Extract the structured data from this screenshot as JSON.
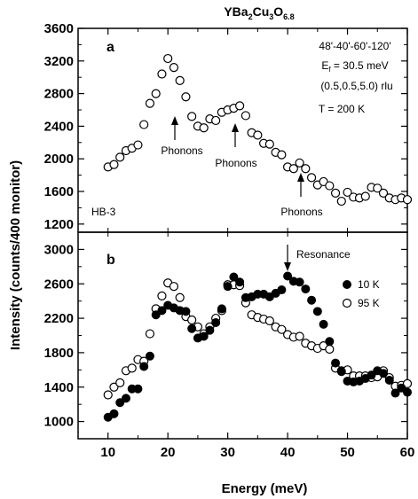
{
  "title_parts": {
    "t1": "YBa",
    "s1": "2",
    "t2": "Cu",
    "s2": "3",
    "t3": "O",
    "s3": "6.8"
  },
  "ylabel": "Intensity (counts/400 monitor)",
  "xlabel": "Energy (meV)",
  "x_ticks": [
    "10",
    "20",
    "30",
    "40",
    "50",
    "60"
  ],
  "panel_a": {
    "letter": "a",
    "y_ticks": [
      "1200",
      "1600",
      "2000",
      "2400",
      "2800",
      "3200",
      "3600"
    ],
    "info": {
      "line1": "48'-40'-60'-120'",
      "ef_prefix": "E",
      "ef_sub": "f",
      "ef_value": " = 30.5 meV",
      "line3": "(0.5,0.5,5.0) rlu",
      "line4": "T = 200 K"
    },
    "instrument": "HB-3",
    "phonon_labels": [
      "Phonons",
      "Phonons",
      "Phonons"
    ]
  },
  "panel_b": {
    "letter": "b",
    "y_ticks": [
      "1000",
      "1400",
      "1800",
      "2200",
      "2600",
      "3000"
    ],
    "resonance_label": "Resonance",
    "legend": [
      "10 K",
      "95 K"
    ]
  },
  "chart_data": [
    {
      "type": "scatter",
      "panel": "a",
      "xlabel": "Energy (meV)",
      "ylabel": "Intensity (counts/400 monitor)",
      "xlim": [
        5,
        60
      ],
      "ylim": [
        1100,
        3600
      ],
      "annotations": [
        "48'-40'-60'-120'",
        "Ef = 30.5 meV",
        "(0.5,0.5,5.0) rlu",
        "T = 200 K",
        "HB-3",
        "Phonons",
        "Phonons",
        "Phonons"
      ],
      "series": [
        {
          "marker": "open-circle",
          "x": [
            10,
            11,
            12,
            13,
            14,
            15,
            16,
            17,
            18,
            19,
            20,
            21,
            22,
            23,
            24,
            25,
            26,
            27,
            28,
            29,
            30,
            31,
            32,
            33,
            34,
            35,
            36,
            37,
            38,
            39,
            40,
            41,
            42,
            43,
            44,
            45,
            46,
            47,
            48,
            49,
            50,
            51,
            52,
            53,
            54,
            55,
            56,
            57,
            58,
            59,
            60
          ],
          "y": [
            1900,
            1930,
            2020,
            2100,
            2130,
            2170,
            2420,
            2680,
            2800,
            3040,
            3230,
            3120,
            2960,
            2760,
            2520,
            2400,
            2380,
            2490,
            2470,
            2570,
            2600,
            2620,
            2650,
            2530,
            2320,
            2290,
            2190,
            2180,
            2080,
            2050,
            1900,
            1880,
            1950,
            1880,
            1770,
            1680,
            1720,
            1670,
            1580,
            1480,
            1590,
            1530,
            1520,
            1540,
            1650,
            1640,
            1580,
            1520,
            1500,
            1520,
            1500
          ]
        }
      ]
    },
    {
      "type": "scatter",
      "panel": "b",
      "xlabel": "Energy (meV)",
      "ylabel": "Intensity (counts/400 monitor)",
      "xlim": [
        5,
        60
      ],
      "ylim": [
        800,
        3200
      ],
      "annotations": [
        "Resonance"
      ],
      "legend_position": "right",
      "series": [
        {
          "name": "10 K",
          "marker": "filled-circle",
          "x": [
            10,
            11,
            12,
            13,
            14,
            15,
            16,
            17,
            18,
            19,
            20,
            21,
            22,
            23,
            24,
            25,
            26,
            27,
            28,
            29,
            30,
            31,
            32,
            33,
            34,
            35,
            36,
            37,
            38,
            39,
            40,
            41,
            42,
            43,
            44,
            45,
            46,
            47,
            48,
            49,
            50,
            51,
            52,
            53,
            54,
            55,
            56,
            57,
            58,
            59,
            60
          ],
          "y": [
            1050,
            1090,
            1220,
            1270,
            1380,
            1380,
            1640,
            1760,
            2240,
            2290,
            2350,
            2320,
            2290,
            2280,
            2080,
            1970,
            1990,
            2060,
            2150,
            2310,
            2570,
            2680,
            2620,
            2440,
            2450,
            2480,
            2480,
            2450,
            2490,
            2530,
            2690,
            2630,
            2620,
            2540,
            2410,
            2280,
            2130,
            1930,
            1680,
            1580,
            1470,
            1460,
            1470,
            1500,
            1540,
            1590,
            1560,
            1480,
            1330,
            1390,
            1340
          ]
        },
        {
          "name": "95 K",
          "marker": "open-circle",
          "x": [
            10,
            11,
            12,
            13,
            14,
            15,
            16,
            17,
            18,
            19,
            20,
            21,
            22,
            23,
            24,
            25,
            26,
            27,
            28,
            29,
            30,
            31,
            32,
            33,
            34,
            35,
            36,
            37,
            38,
            39,
            40,
            41,
            42,
            43,
            44,
            45,
            46,
            47,
            48,
            49,
            50,
            51,
            52,
            53,
            54,
            55,
            56,
            57,
            58,
            59,
            60
          ],
          "y": [
            1310,
            1400,
            1450,
            1590,
            1620,
            1720,
            1700,
            2020,
            2310,
            2460,
            2610,
            2570,
            2440,
            2220,
            2180,
            2100,
            2020,
            2100,
            2200,
            2290,
            2590,
            2590,
            2580,
            2380,
            2240,
            2210,
            2190,
            2170,
            2100,
            2070,
            2010,
            1980,
            1990,
            1910,
            1880,
            1850,
            1880,
            1840,
            1620,
            1590,
            1600,
            1530,
            1530,
            1530,
            1510,
            1520,
            1590,
            1510,
            1410,
            1420,
            1440
          ]
        }
      ]
    }
  ]
}
